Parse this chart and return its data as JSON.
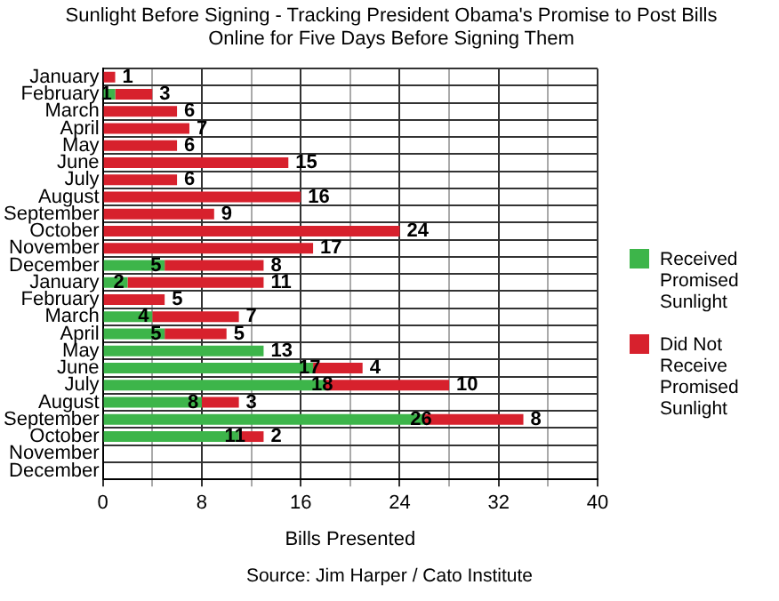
{
  "chart_data": {
    "type": "bar",
    "orientation": "horizontal",
    "stacked": true,
    "title": "Sunlight Before Signing - Tracking President Obama's Promise to Post Bills Online for Five Days Before Signing Them",
    "xlabel": "Bills Presented",
    "annotations": [
      "Source: Jim Harper / Cato Institute"
    ],
    "categories": [
      "January",
      "February",
      "March",
      "April",
      "May",
      "June",
      "July",
      "August",
      "September",
      "October",
      "November",
      "December",
      "January",
      "February",
      "March",
      "April",
      "May",
      "June",
      "July",
      "August",
      "September",
      "October",
      "November",
      "December"
    ],
    "series": [
      {
        "name": "Received Promised Sunlight",
        "color": "#3db54a",
        "values": [
          null,
          1,
          null,
          null,
          null,
          null,
          null,
          null,
          null,
          null,
          null,
          5,
          2,
          null,
          4,
          5,
          13,
          17,
          18,
          8,
          26,
          11,
          null,
          null
        ]
      },
      {
        "name": "Did Not Receive Promised Sunlight",
        "color": "#d7212d",
        "values": [
          1,
          3,
          6,
          7,
          6,
          15,
          6,
          16,
          9,
          24,
          17,
          8,
          11,
          5,
          7,
          5,
          null,
          4,
          10,
          3,
          8,
          2,
          null,
          null
        ]
      }
    ],
    "xlim": [
      0,
      40
    ],
    "xticks": [
      0,
      {
        "value": 4,
        "label": null
      },
      8,
      {
        "value": 12,
        "label": null
      },
      16,
      {
        "value": 20,
        "label": null
      },
      24,
      {
        "value": 28,
        "label": null
      },
      32,
      {
        "value": 36,
        "label": null
      },
      40
    ],
    "grid": true,
    "legend": "right",
    "data_labels": true
  }
}
